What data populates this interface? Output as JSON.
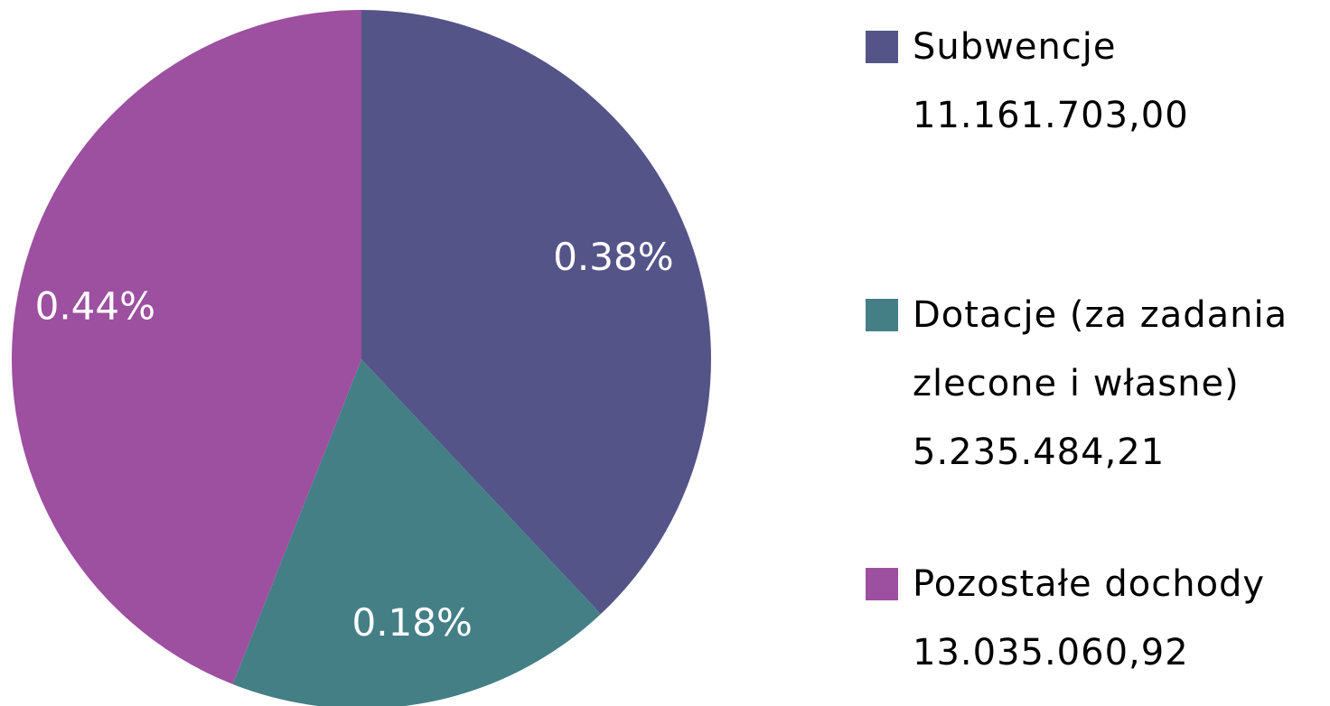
{
  "chart_data": {
    "type": "pie",
    "categories": [
      "Subwencje",
      "Dotacje (za zadania zlecone i własne)",
      "Pozostałe dochody"
    ],
    "amounts": [
      "11.161.703,00",
      "5.235.484,21",
      "13.035.060,92"
    ],
    "values": [
      0.38,
      0.18,
      0.44
    ],
    "value_labels": [
      "0.38%",
      "0.18%",
      "0.44%"
    ],
    "colors": [
      "#545489",
      "#447f86",
      "#9d4fa0"
    ],
    "legend": "right"
  }
}
